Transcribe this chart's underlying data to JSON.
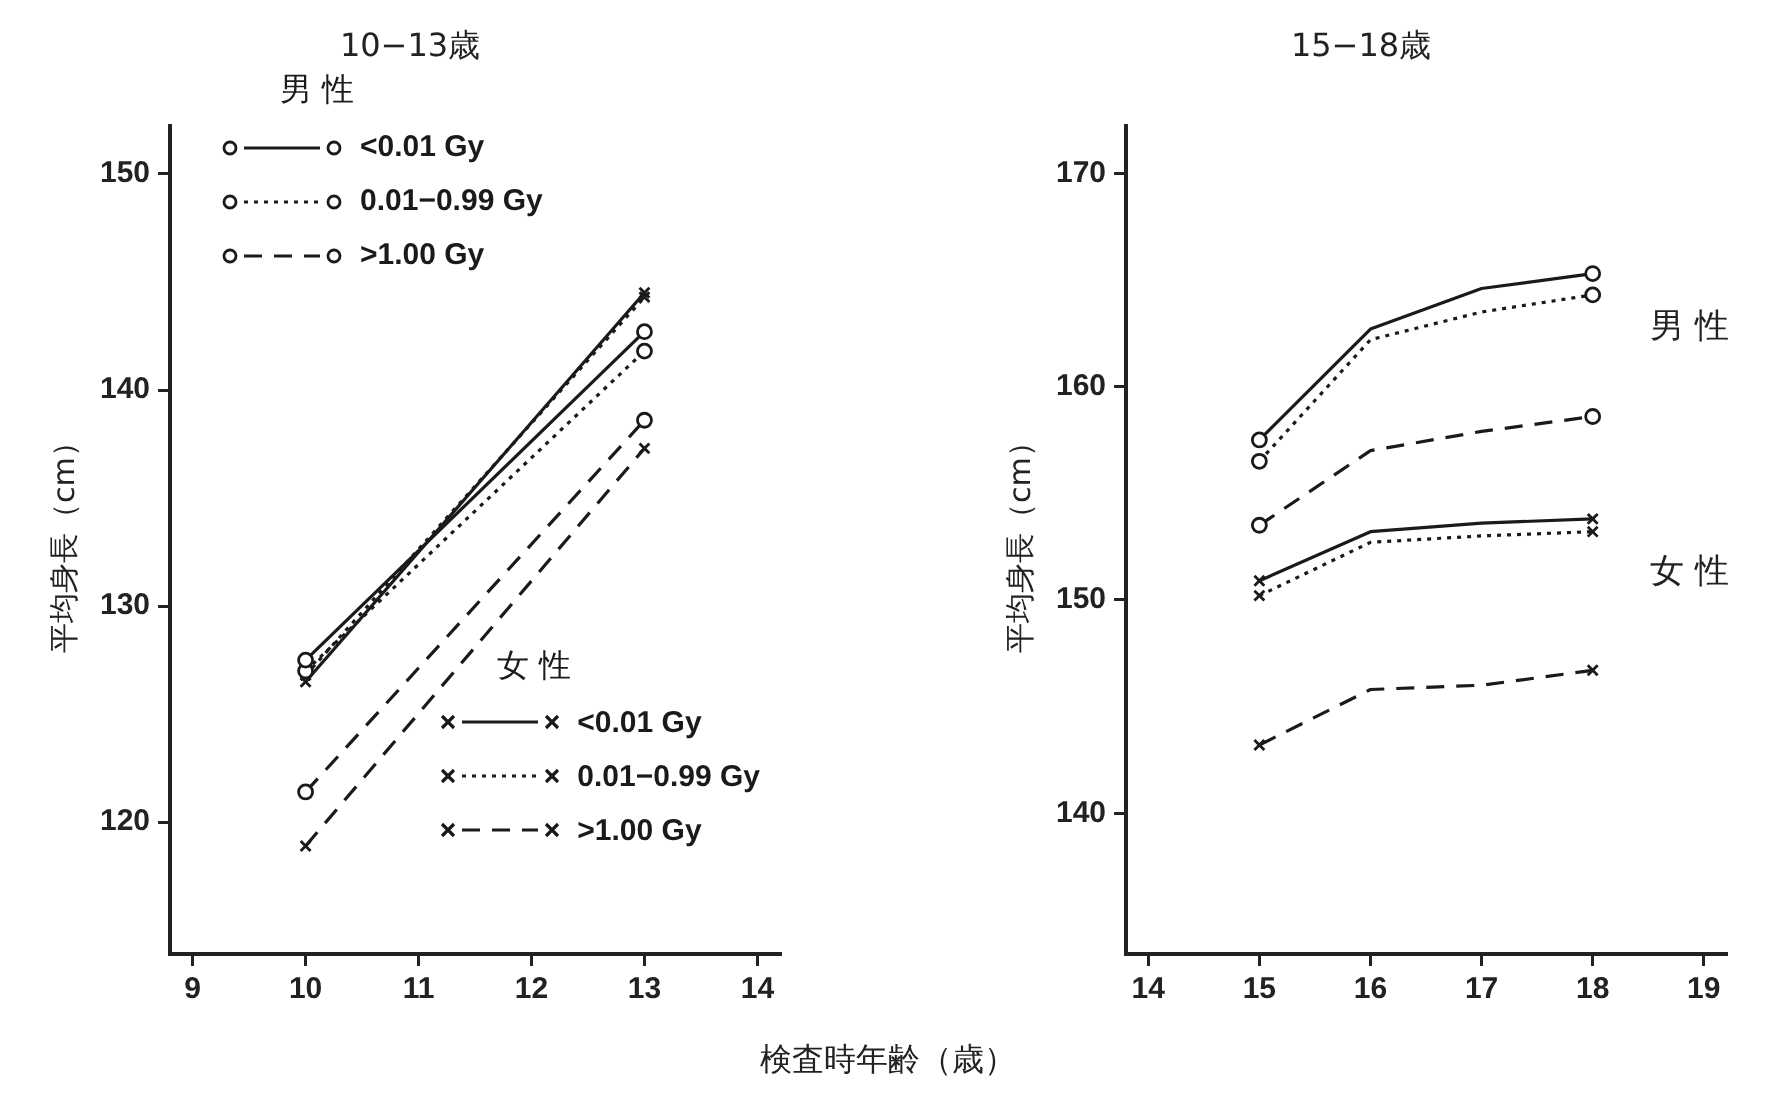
{
  "chart_data": [
    {
      "type": "line",
      "title": "10−13歳",
      "xlabel": "検査時年齢（歳）",
      "ylabel": "平均身長（cm）",
      "xlim": [
        8.8,
        14.2
      ],
      "xticks": [
        9,
        10,
        11,
        12,
        13,
        14
      ],
      "ylim": [
        113.9,
        152.2
      ],
      "yticks": [
        120,
        130,
        140,
        150
      ],
      "grid": false,
      "legend": "top right",
      "annotations": [
        "男 性",
        "女 性"
      ],
      "series": [
        {
          "name": "<0.01 Gy",
          "color": "#1a1a1a",
          "x": [
            10,
            13
          ],
          "values": [
            127.5,
            142.7
          ],
          "marker": "circle",
          "line_style": "solid"
        },
        {
          "name": "0.01−0.99 Gy",
          "color": "#1a1a1a",
          "x": [
            10,
            13
          ],
          "values": [
            127.0,
            141.8
          ],
          "marker": "circle",
          "line_style": "dotted"
        },
        {
          "name": ">1.00 Gy",
          "color": "#1a1a1a",
          "x": [
            10,
            13
          ],
          "values": [
            121.4,
            138.6
          ],
          "marker": "circle",
          "line_style": "dashed"
        },
        {
          "name": "<0.01 Gy",
          "color": "#1a1a1a",
          "x": [
            10,
            13
          ],
          "values": [
            126.5,
            144.5
          ],
          "marker": "cross",
          "line_style": "solid"
        },
        {
          "name": "0.01−0.99 Gy",
          "color": "#1a1a1a",
          "x": [
            10,
            13
          ],
          "values": [
            126.8,
            144.3
          ],
          "marker": "cross",
          "line_style": "dotted"
        },
        {
          "name": ">1.00 Gy",
          "color": "#1a1a1a",
          "x": [
            10,
            13
          ],
          "values": [
            118.9,
            137.3
          ],
          "marker": "cross",
          "line_style": "dashed"
        }
      ]
    },
    {
      "type": "line",
      "title": "15−18歳",
      "ylabel": "平均身長（cm）",
      "xlim": [
        13.8,
        19.2
      ],
      "xticks": [
        14,
        15,
        16,
        17,
        18,
        19
      ],
      "ylim": [
        133.4,
        172.2
      ],
      "yticks": [
        140,
        150,
        160,
        170
      ],
      "grid": false,
      "legend": false,
      "annotations": [
        "男 性",
        "女 性"
      ],
      "series": [
        {
          "color": "#1a1a1a",
          "x": [
            15,
            16,
            17,
            18
          ],
          "values": [
            157.5,
            162.7,
            164.6,
            165.3
          ],
          "marker": "circle",
          "line_style": "solid"
        },
        {
          "color": "#1a1a1a",
          "x": [
            15,
            16,
            17,
            18
          ],
          "values": [
            156.5,
            162.2,
            163.5,
            164.3
          ],
          "marker": "circle",
          "line_style": "dotted"
        },
        {
          "color": "#1a1a1a",
          "x": [
            15,
            16,
            17,
            18
          ],
          "values": [
            153.5,
            157.0,
            157.9,
            158.6
          ],
          "marker": "circle",
          "line_style": "dashed"
        },
        {
          "color": "#1a1a1a",
          "x": [
            15,
            16,
            17,
            18
          ],
          "values": [
            150.9,
            153.2,
            153.6,
            153.8
          ],
          "marker": "cross",
          "line_style": "solid"
        },
        {
          "color": "#1a1a1a",
          "x": [
            15,
            16,
            17,
            18
          ],
          "values": [
            150.2,
            152.7,
            153.0,
            153.2
          ],
          "marker": "cross",
          "line_style": "dotted"
        },
        {
          "color": "#1a1a1a",
          "x": [
            15,
            16,
            17,
            18
          ],
          "values": [
            143.2,
            145.8,
            146.0,
            146.7
          ],
          "marker": "cross",
          "line_style": "dashed"
        }
      ]
    }
  ]
}
